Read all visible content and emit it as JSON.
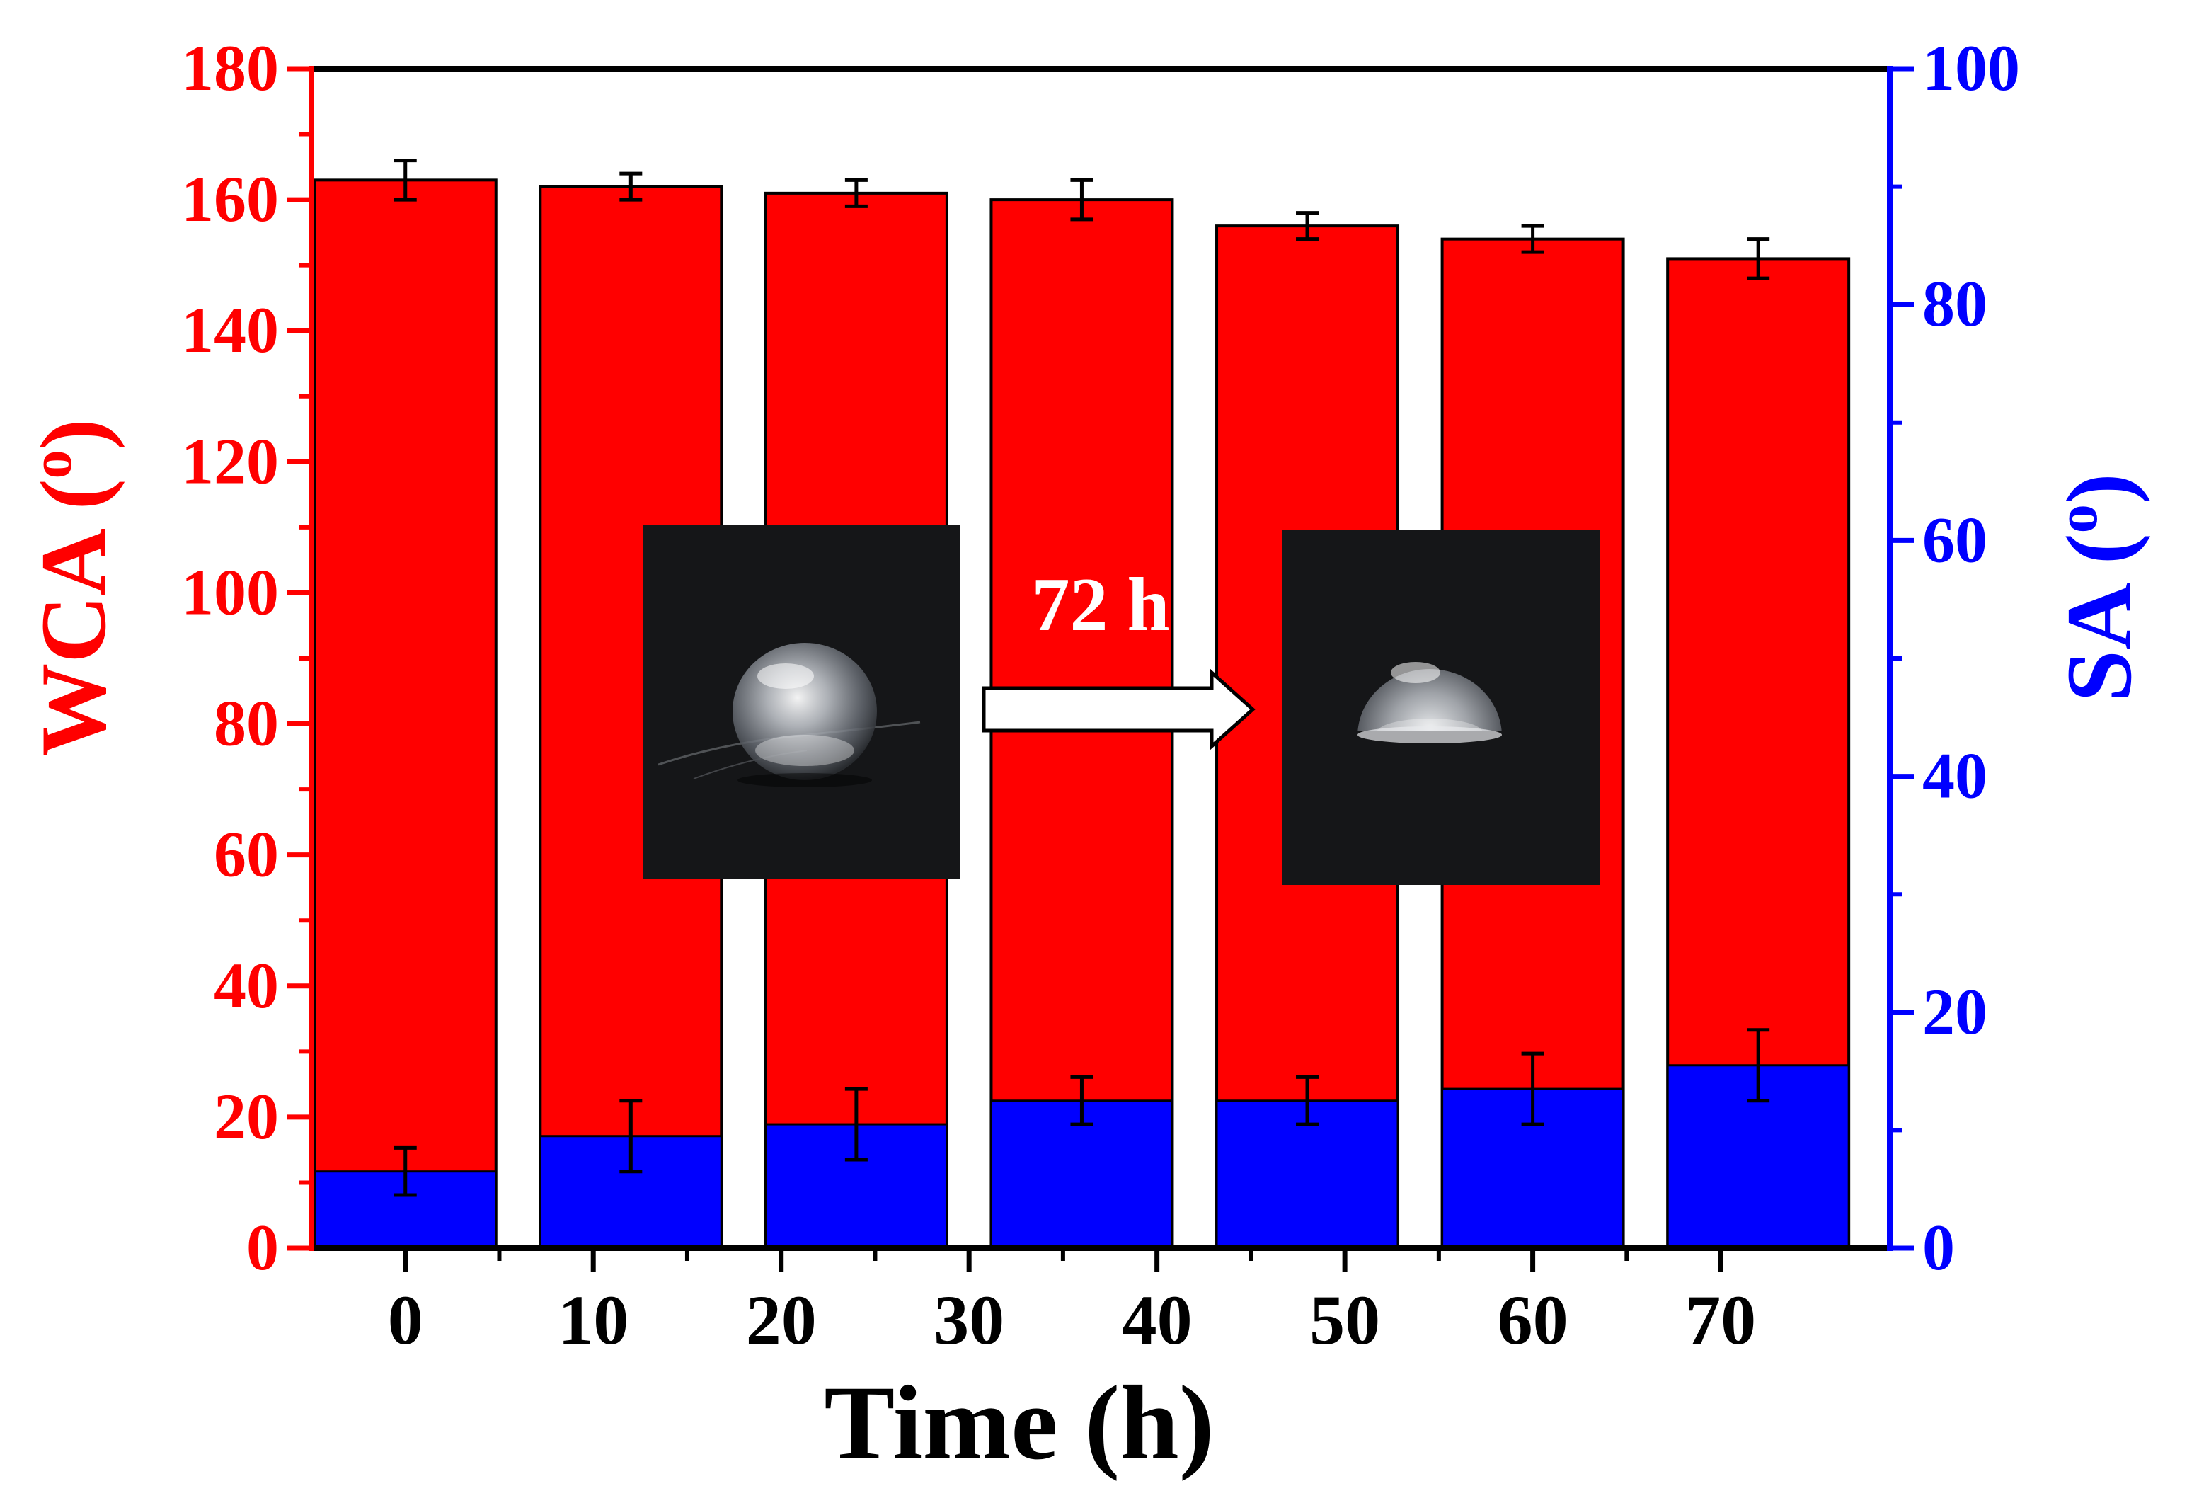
{
  "chart_data": {
    "type": "bar",
    "x_tick_labels": [
      "0",
      "10",
      "20",
      "30",
      "40",
      "50",
      "60",
      "70"
    ],
    "xlabel": "Time (h)",
    "ylabel": "WCA (",
    "ylabel_sup": "o",
    "ylabel_close": ")",
    "y2label": "SA (",
    "y2label_sup": "o",
    "y2label_close": ")",
    "ylim": [
      0,
      180
    ],
    "y2lim": [
      0,
      100
    ],
    "y_ticks": [
      "0",
      "20",
      "40",
      "60",
      "80",
      "100",
      "120",
      "140",
      "160",
      "180"
    ],
    "y2_ticks": [
      "0",
      "20",
      "40",
      "60",
      "80",
      "100"
    ],
    "series": [
      {
        "name": "WCA",
        "axis": "left",
        "color": "#ff0000",
        "x": [
          0,
          12,
          24,
          36,
          48,
          60,
          72
        ],
        "values": [
          163,
          162,
          161,
          160,
          156,
          154,
          151
        ],
        "errors": [
          3,
          2,
          2,
          3,
          2,
          2,
          3
        ]
      },
      {
        "name": "SA",
        "axis": "right",
        "color": "#0000ff",
        "x": [
          0,
          12,
          24,
          36,
          48,
          60,
          72
        ],
        "values": [
          6.5,
          9.5,
          10.5,
          12.5,
          12.5,
          13.5,
          15.5
        ],
        "errors": [
          2,
          3,
          3,
          2,
          2,
          3,
          3
        ]
      }
    ],
    "annotation": "72 h",
    "insets": [
      "water-droplet-initial-photo",
      "water-droplet-after-72h-photo"
    ],
    "grid": false,
    "colors": {
      "left_axis": "#ff0000",
      "right_axis": "#0000ff",
      "bar_outline": "#000000",
      "inset_bg": "#151618",
      "annotation_text": "#ffffff"
    }
  }
}
